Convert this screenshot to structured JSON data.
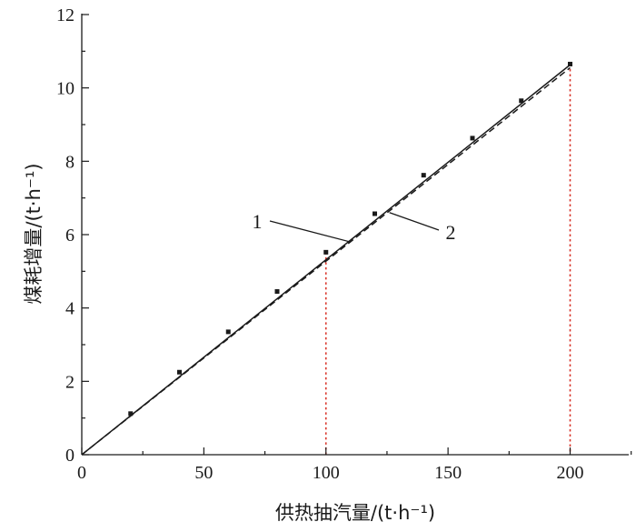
{
  "chart_data": {
    "type": "line",
    "xlabel": "供热抽汽量/(t·h⁻¹)",
    "ylabel": "煤耗增量/(t·h⁻¹)",
    "xlim": [
      0,
      225
    ],
    "ylim": [
      0,
      12
    ],
    "xticks": [
      0,
      50,
      100,
      150,
      200
    ],
    "yticks": [
      0,
      2,
      4,
      6,
      8,
      10,
      12
    ],
    "x_tick_labels": [
      "0",
      "50",
      "100",
      "150",
      "200"
    ],
    "y_tick_labels": [
      "0",
      "2",
      "4",
      "6",
      "8",
      "10",
      "12"
    ],
    "grid": false,
    "series": [
      {
        "label": "1",
        "style": "solid",
        "color": "#1a1a1a",
        "x": [
          0,
          200
        ],
        "y": [
          0,
          10.63
        ]
      },
      {
        "label": "2",
        "style": "dashed",
        "color": "#1a1a1a",
        "x": [
          0,
          200
        ],
        "y": [
          0,
          10.55
        ]
      },
      {
        "style": "markers",
        "color": "#1a1a1a",
        "x": [
          20,
          40,
          60,
          80,
          100,
          120,
          140,
          160,
          180,
          200
        ],
        "y": [
          1.12,
          2.25,
          3.35,
          4.45,
          5.52,
          6.57,
          7.62,
          8.63,
          9.65,
          10.65
        ]
      }
    ],
    "reference_lines": [
      {
        "x": 100,
        "y": 5.52,
        "color": "#d9362b",
        "style": "dotted"
      },
      {
        "x": 200,
        "y": 10.65,
        "color": "#d9362b",
        "style": "dotted"
      }
    ],
    "annotations": [
      {
        "text": "1",
        "target_x": 110,
        "target_y": 5.8
      },
      {
        "text": "2",
        "target_x": 126,
        "target_y": 6.6
      }
    ]
  }
}
